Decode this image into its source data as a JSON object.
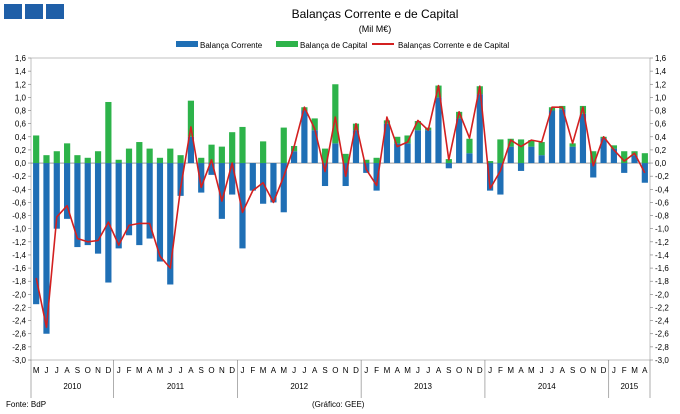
{
  "logo": {
    "icon": "bdp-blocks-logo",
    "color": "#1f5fa8"
  },
  "footer": {
    "source": "Fonte: BdP",
    "credit": "(Gráfico: GEE)"
  },
  "chart_data": {
    "type": "bar",
    "title": "Balanças Corrente e de Capital",
    "subtitle": "(Mil M€)",
    "legend_position": "top",
    "grid": false,
    "ylim": [
      -3.0,
      1.6
    ],
    "ytick_step": 0.2,
    "yticks": [
      "1,6",
      "1,4",
      "1,2",
      "1,0",
      "0,8",
      "0,6",
      "0,4",
      "0,2",
      "0,0",
      "-0,2",
      "-0,4",
      "-0,6",
      "-0,8",
      "-1,0",
      "-1,2",
      "-1,4",
      "-1,6",
      "-1,8",
      "-2,0",
      "-2,2",
      "-2,4",
      "-2,6",
      "-2,8",
      "-3,0"
    ],
    "categories": [
      "M",
      "J",
      "J",
      "A",
      "S",
      "O",
      "N",
      "D",
      "J",
      "F",
      "M",
      "A",
      "M",
      "J",
      "J",
      "A",
      "S",
      "O",
      "N",
      "D",
      "J",
      "F",
      "M",
      "A",
      "M",
      "J",
      "J",
      "A",
      "S",
      "O",
      "N",
      "D",
      "J",
      "F",
      "M",
      "A",
      "M",
      "J",
      "J",
      "A",
      "S",
      "O",
      "N",
      "D",
      "J",
      "F",
      "M",
      "A",
      "M",
      "J",
      "J",
      "A",
      "S",
      "O",
      "N",
      "D",
      "J",
      "F",
      "M",
      "A"
    ],
    "year_labels": [
      {
        "label": "2010",
        "first": 0,
        "last": 7
      },
      {
        "label": "2011",
        "first": 8,
        "last": 19
      },
      {
        "label": "2012",
        "first": 20,
        "last": 31
      },
      {
        "label": "2013",
        "first": 32,
        "last": 43
      },
      {
        "label": "2014",
        "first": 44,
        "last": 55
      },
      {
        "label": "2015",
        "first": 56,
        "last": 59
      }
    ],
    "series": [
      {
        "name": "Balança Corrente",
        "kind": "bar",
        "color": "#1f6fb5",
        "values": [
          -2.15,
          -2.6,
          -1.0,
          -0.85,
          -1.28,
          -1.25,
          -1.38,
          -1.82,
          -1.3,
          -1.1,
          -1.25,
          -1.15,
          -1.5,
          -1.85,
          -0.5,
          0.4,
          -0.45,
          -0.18,
          -0.85,
          -0.48,
          -1.3,
          -0.42,
          -0.62,
          -0.6,
          -0.75,
          0.18,
          0.8,
          0.5,
          -0.35,
          0.3,
          -0.35,
          0.5,
          -0.15,
          -0.42,
          0.6,
          0.3,
          0.3,
          0.5,
          0.5,
          1.0,
          -0.08,
          0.68,
          0.15,
          1.05,
          -0.42,
          -0.48,
          0.25,
          -0.12,
          0.25,
          0.12,
          0.8,
          0.82,
          0.25,
          0.75,
          -0.22,
          0.38,
          0.22,
          -0.15,
          0.12,
          -0.3
        ]
      },
      {
        "name": "Balança de Capital",
        "kind": "bar",
        "color": "#2db34a",
        "values": [
          0.42,
          0.12,
          0.18,
          0.3,
          0.12,
          0.08,
          0.18,
          0.93,
          0.05,
          0.22,
          0.32,
          0.22,
          0.08,
          0.22,
          0.12,
          0.55,
          0.08,
          0.28,
          0.25,
          0.47,
          0.55,
          0.0,
          0.33,
          0.0,
          0.54,
          0.08,
          0.05,
          0.18,
          0.22,
          0.9,
          0.14,
          0.1,
          0.05,
          0.08,
          0.05,
          0.1,
          0.12,
          0.14,
          0.04,
          0.18,
          0.06,
          0.1,
          0.22,
          0.12,
          0.03,
          0.36,
          0.12,
          0.36,
          0.1,
          0.2,
          0.05,
          0.05,
          0.05,
          0.12,
          0.18,
          0.02,
          0.05,
          0.18,
          0.06,
          0.15
        ]
      },
      {
        "name": "Balanças Corrente e de Capital",
        "kind": "line",
        "color": "#d32020",
        "values": [
          -1.75,
          -2.5,
          -0.82,
          -0.65,
          -1.15,
          -1.2,
          -1.18,
          -0.9,
          -1.25,
          -0.95,
          -0.92,
          -0.92,
          -1.42,
          -1.6,
          -0.38,
          0.55,
          -0.37,
          0.05,
          -0.58,
          0.0,
          -0.75,
          -0.42,
          -0.3,
          -0.6,
          -0.2,
          0.25,
          0.85,
          0.52,
          -0.13,
          0.7,
          -0.2,
          0.6,
          -0.1,
          -0.34,
          0.7,
          0.25,
          0.32,
          0.65,
          0.5,
          1.18,
          0.05,
          0.78,
          0.38,
          1.17,
          -0.39,
          -0.12,
          0.35,
          0.25,
          0.35,
          0.32,
          0.85,
          0.85,
          0.3,
          0.85,
          -0.04,
          0.4,
          0.2,
          0.03,
          0.15,
          -0.15
        ]
      }
    ]
  }
}
